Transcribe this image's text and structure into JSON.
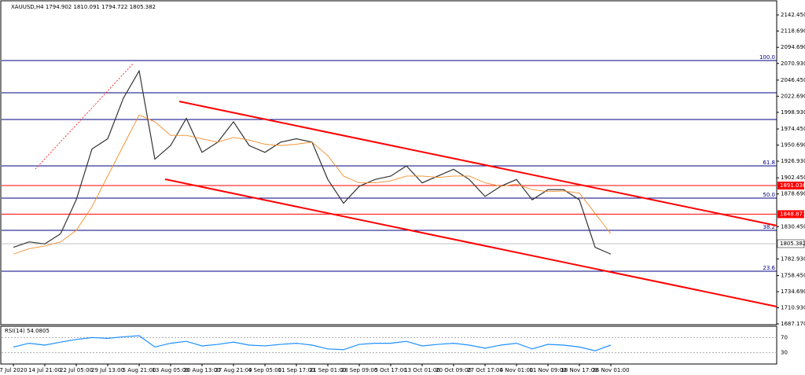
{
  "chart_data": [
    {
      "type": "line",
      "title": "XAUUSD,H4  1794.902 1810.091 1794.722 1805.382",
      "categories": [
        "7 Jul 2020",
        null,
        "14 Jul 21:00",
        null,
        "22 Jul 05:00",
        null,
        "29 Jul 13:00",
        null,
        "5 Aug 21:00",
        null,
        "13 Aug 05:00",
        null,
        "20 Aug 13:00",
        null,
        "27 Aug 21:00",
        null,
        "4 Sep 05:00",
        null,
        "11 Sep 17:00",
        null,
        "21 Sep 01:00",
        null,
        "28 Sep 09:00",
        null,
        "5 Oct 17:00",
        null,
        "13 Oct 01:00",
        null,
        "20 Oct 09:00",
        null,
        "27 Oct 17:00",
        null,
        "4 Nov 01:00",
        null,
        "11 Nov 09:00",
        null,
        "18 Nov 17:00",
        null,
        "26 Nov 01:00"
      ],
      "series": [
        {
          "color": "#333333",
          "values": [
            1800,
            1808,
            1805,
            1820,
            1870,
            1945,
            1960,
            2020,
            2060,
            1930,
            1950,
            1990,
            1940,
            1955,
            1985,
            1950,
            1940,
            1955,
            1960,
            1955,
            1900,
            1865,
            1890,
            1900,
            1905,
            1920,
            1895,
            1905,
            1915,
            1900,
            1875,
            1890,
            1900,
            1870,
            1885,
            1885,
            1870,
            1800,
            1790
          ]
        },
        {
          "color": "#f28c28",
          "values": [
            1790,
            1798,
            1802,
            1808,
            1825,
            1860,
            1905,
            1950,
            1995,
            1985,
            1965,
            1965,
            1960,
            1955,
            1962,
            1958,
            1952,
            1950,
            1952,
            1955,
            1935,
            1905,
            1895,
            1895,
            1898,
            1905,
            1905,
            1903,
            1905,
            1905,
            1895,
            1890,
            1893,
            1885,
            1882,
            1883,
            1880,
            1850,
            1820
          ]
        }
      ],
      "ylim": [
        1687.17,
        2158.69
      ],
      "yticks": [
        {
          "value": 2142.45,
          "label": "2142.450"
        },
        {
          "value": 2118.69,
          "label": "2118.690"
        },
        {
          "value": 2094.69,
          "label": "2094.690"
        },
        {
          "value": 2070.93,
          "label": "2070.930"
        },
        {
          "value": 2046.45,
          "label": "2046.450"
        },
        {
          "value": 2022.69,
          "label": "2022.690"
        },
        {
          "value": 1998.93,
          "label": "1998.930"
        },
        {
          "value": 1974.45,
          "label": "1974.450"
        },
        {
          "value": 1950.69,
          "label": "1950.690"
        },
        {
          "value": 1926.93,
          "label": "1926.930"
        },
        {
          "value": 1902.45,
          "label": "1902.450"
        },
        {
          "value": 1878.69,
          "label": "1878.690"
        },
        {
          "value": 1830.45,
          "label": "1830.450"
        },
        {
          "value": 1782.93,
          "label": "1782.930"
        },
        {
          "value": 1758.45,
          "label": "1758.450"
        },
        {
          "value": 1734.69,
          "label": "1734.690"
        },
        {
          "value": 1710.93,
          "label": "1710.930"
        },
        {
          "value": 1687.17,
          "label": "1687.170"
        }
      ],
      "levels": [
        {
          "value": 2075.3,
          "label": "100.0"
        },
        {
          "value": 2027.8
        },
        {
          "value": 1988.4
        },
        {
          "value": 1920.0,
          "label": "61.8"
        },
        {
          "value": 1872.5,
          "label": "50.0"
        },
        {
          "value": 1825.0,
          "label": "38.2"
        },
        {
          "value": 1764.8,
          "label": "23.6"
        }
      ],
      "level_color": "#000080",
      "price_lines": {
        "values": [
          1891.036,
          1848.871
        ],
        "value_labels": [
          "1891.036",
          "1848.871"
        ],
        "color": "#ff0000"
      },
      "last_price": {
        "value": 1805.382,
        "label": "1805.382"
      },
      "trendlines": [
        {
          "x": [
            10.55,
            48.55
          ],
          "y": [
            2015.0,
            1832.0
          ],
          "color": "#ff0000",
          "dashed": false
        },
        {
          "x": [
            9.65,
            48.55
          ],
          "y": [
            1900.3,
            1712.7
          ],
          "color": "#ff0000",
          "dashed": false
        },
        {
          "x": [
            1.4,
            7.65
          ],
          "y": [
            1915.4,
            2071.7
          ],
          "color": "#ff0000",
          "dashed": true
        }
      ]
    },
    {
      "type": "line",
      "title": "RSI(14) 54.0805",
      "series": [
        {
          "color": "#1e90ff",
          "values": [
            45,
            55,
            50,
            58,
            65,
            70,
            68,
            72,
            75,
            45,
            55,
            60,
            48,
            52,
            58,
            50,
            48,
            52,
            55,
            50,
            40,
            38,
            52,
            55,
            55,
            60,
            48,
            52,
            55,
            50,
            42,
            50,
            55,
            40,
            52,
            50,
            45,
            35,
            50
          ]
        }
      ],
      "ylim": [
        0,
        100
      ],
      "yticks": [
        30,
        70
      ]
    }
  ]
}
